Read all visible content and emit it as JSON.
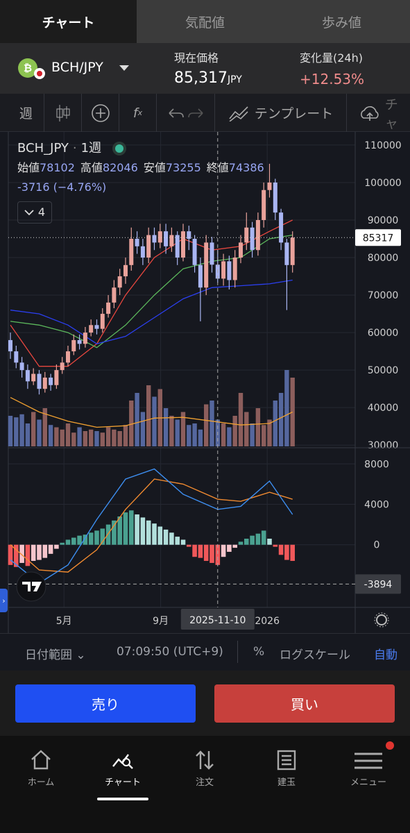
{
  "tabs": [
    "チャート",
    "気配値",
    "歩み値"
  ],
  "ticker": {
    "symbol": "BCH/JPY",
    "price_label": "現在価格",
    "price": "85,317",
    "price_unit": "JPY",
    "change_label": "変化量(24h)",
    "change": "+12.53%"
  },
  "toolbar": {
    "interval": "週",
    "template": "テンプレート",
    "cloud": "チャ"
  },
  "chart_data": {
    "type": "candlestick",
    "symbol": "BCH_JPY",
    "interval": "1週",
    "legend_labels": [
      "始値",
      "高値",
      "安値",
      "終値"
    ],
    "change_text": "-3716 (−4.76%)",
    "indicator_count": 4,
    "crosshair": {
      "x": {
        "value": 36,
        "label": "2025-11-10"
      },
      "y": -3894
    },
    "xlim": [
      -0.36,
      59.64
    ],
    "xticks": [
      {
        "value": 9.3,
        "label": "5月"
      },
      {
        "value": 26.1,
        "label": "9月"
      },
      {
        "value": 44.6,
        "label": "2026"
      }
    ],
    "ylim": [
      29300,
      113500
    ],
    "yticks": [
      30000,
      40000,
      50000,
      60000,
      70000,
      80000,
      90000,
      100000,
      110000
    ],
    "grid": true,
    "up_color": "#e9a29b",
    "down_color": "#a9b5f2",
    "open": [
      58000,
      55000,
      52000,
      50000,
      47000,
      49000,
      45000,
      48000,
      46000,
      50000,
      52000,
      55000,
      58000,
      57000,
      60000,
      62000,
      61000,
      65000,
      68000,
      72000,
      75000,
      78000,
      85000,
      83000,
      80000,
      86000,
      84000,
      87000,
      83000,
      86000,
      80000,
      87000,
      85000,
      78000,
      72000,
      84000,
      78102,
      74386,
      79000,
      74000,
      80000,
      84000,
      88000,
      82000,
      90000,
      98000,
      100000,
      92000,
      84000,
      78000
    ],
    "high": [
      60000,
      56500,
      53500,
      51500,
      50500,
      50000,
      49500,
      49000,
      51500,
      53500,
      56500,
      59500,
      59500,
      61500,
      63500,
      63500,
      66500,
      70000,
      74000,
      77000,
      80000,
      88000,
      87000,
      85000,
      88000,
      88000,
      89000,
      89000,
      88000,
      87000,
      89000,
      88500,
      86000,
      80000,
      86000,
      85500,
      82046,
      81000,
      80500,
      82000,
      86000,
      92000,
      89500,
      92000,
      100000,
      105000,
      101000,
      93000,
      85000,
      87000
    ],
    "low": [
      53000,
      50500,
      48000,
      45000,
      46000,
      43500,
      44000,
      44500,
      45000,
      49000,
      51000,
      54000,
      55500,
      56000,
      59000,
      59500,
      60000,
      64000,
      66500,
      70000,
      73000,
      76500,
      81000,
      78000,
      78500,
      82000,
      82500,
      81000,
      81500,
      78000,
      79000,
      82000,
      76000,
      63000,
      70000,
      76000,
      73255,
      72500,
      71500,
      72000,
      78500,
      82000,
      80000,
      80500,
      88000,
      96000,
      90000,
      82000,
      66000,
      76000
    ],
    "close": [
      55000,
      52000,
      50000,
      47000,
      49000,
      45000,
      48000,
      46000,
      50000,
      52000,
      55000,
      58000,
      57000,
      60000,
      62000,
      61000,
      65000,
      68000,
      72000,
      75000,
      78000,
      85000,
      83000,
      80000,
      86000,
      84000,
      87000,
      83000,
      86000,
      80000,
      87000,
      85000,
      78000,
      72000,
      84000,
      78102,
      74386,
      79000,
      74000,
      80000,
      84000,
      88000,
      82000,
      90000,
      98000,
      100000,
      92000,
      84000,
      78000,
      85317
    ],
    "ma": [
      {
        "color": "#e8473f",
        "x": [
          0,
          5,
          10,
          15,
          20,
          25,
          30,
          35,
          40,
          45,
          49
        ],
        "values": [
          62000,
          51000,
          51000,
          57000,
          70000,
          80000,
          85000,
          82000,
          83000,
          87000,
          90000
        ]
      },
      {
        "color": "#5cb85c",
        "x": [
          0,
          5,
          10,
          15,
          20,
          25,
          30,
          35,
          40,
          45,
          49
        ],
        "values": [
          63000,
          62000,
          60000,
          56000,
          62000,
          70000,
          77000,
          79000,
          80000,
          85000,
          86000
        ]
      },
      {
        "color": "#2b3ff0",
        "x": [
          0,
          5,
          10,
          15,
          20,
          25,
          30,
          35,
          40,
          45,
          49
        ],
        "values": [
          66000,
          65000,
          62000,
          57000,
          59000,
          64000,
          69000,
          72000,
          72500,
          73000,
          74000
        ]
      }
    ],
    "volume": {
      "up_color": "#8c5e5c",
      "down_color": "#55679e",
      "values": [
        40,
        38,
        42,
        30,
        45,
        35,
        50,
        28,
        25,
        22,
        30,
        18,
        25,
        20,
        22,
        20,
        18,
        25,
        22,
        20,
        28,
        60,
        70,
        45,
        80,
        65,
        75,
        50,
        40,
        35,
        45,
        28,
        30,
        22,
        55,
        60,
        35,
        30,
        25,
        40,
        70,
        45,
        30,
        50,
        28,
        35,
        60,
        70,
        100,
        90
      ],
      "ma": {
        "color": "#f0a030",
        "x": [
          0,
          5,
          10,
          15,
          20,
          25,
          30,
          35,
          40,
          45,
          49
        ],
        "values": [
          64,
          45,
          33,
          25,
          27,
          37,
          38,
          33,
          28,
          30,
          45
        ]
      }
    },
    "macd": {
      "ylim": [
        -6200,
        9600
      ],
      "yticks": [
        0,
        4000,
        8000
      ],
      "colors": {
        "pos_rising": "#4aa190",
        "pos_falling": "#b2dfdb",
        "neg_falling": "#f0585a",
        "neg_rising": "#f7c5cc"
      },
      "histogram": [
        -2000,
        -2200,
        -1800,
        -2100,
        -1600,
        -1500,
        -1300,
        -900,
        -400,
        200,
        500,
        700,
        900,
        1000,
        1200,
        1400,
        1600,
        2000,
        2400,
        2800,
        3200,
        3400,
        3000,
        2700,
        2400,
        2100,
        1800,
        1500,
        1200,
        800,
        500,
        -200,
        -1200,
        -1300,
        -1600,
        -1800,
        -2000,
        -1200,
        -700,
        -300,
        300,
        600,
        900,
        1100,
        1400,
        600,
        -200,
        -1000,
        -1500,
        -1600
      ],
      "macd": {
        "color": "#3d8ef0",
        "x": [
          0,
          5,
          10,
          15,
          20,
          25,
          30,
          36,
          40,
          45,
          49
        ],
        "values": [
          -1500,
          -3800,
          -2000,
          2500,
          6500,
          7500,
          5000,
          3500,
          3800,
          6300,
          3000
        ]
      },
      "signal": {
        "color": "#f08a30",
        "x": [
          0,
          5,
          10,
          15,
          20,
          25,
          30,
          36,
          40,
          45,
          49
        ],
        "values": [
          0,
          -2500,
          -2700,
          -500,
          3500,
          6500,
          6000,
          4500,
          4300,
          5200,
          4500
        ]
      }
    }
  },
  "footer": {
    "range": "日付範囲",
    "time": "07:09:50 (UTC+9)",
    "percent": "%",
    "log": "ログスケール",
    "auto": "自動"
  },
  "actions": [
    "売り",
    "買い"
  ],
  "nav": [
    "ホーム",
    "チャート",
    "注文",
    "建玉",
    "メニュー"
  ]
}
